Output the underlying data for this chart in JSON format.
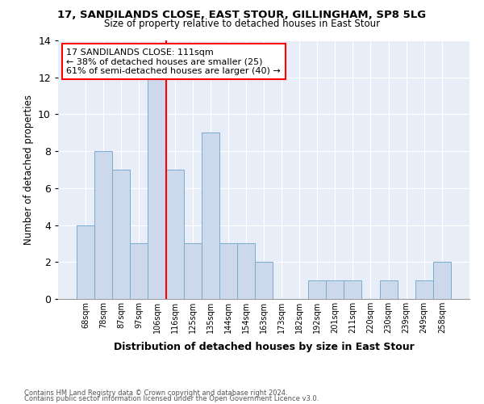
{
  "title1": "17, SANDILANDS CLOSE, EAST STOUR, GILLINGHAM, SP8 5LG",
  "title2": "Size of property relative to detached houses in East Stour",
  "xlabel": "Distribution of detached houses by size in East Stour",
  "ylabel": "Number of detached properties",
  "categories": [
    "68sqm",
    "78sqm",
    "87sqm",
    "97sqm",
    "106sqm",
    "116sqm",
    "125sqm",
    "135sqm",
    "144sqm",
    "154sqm",
    "163sqm",
    "173sqm",
    "182sqm",
    "192sqm",
    "201sqm",
    "211sqm",
    "220sqm",
    "230sqm",
    "239sqm",
    "249sqm",
    "258sqm"
  ],
  "values": [
    4,
    8,
    7,
    3,
    12,
    7,
    3,
    9,
    3,
    3,
    2,
    0,
    0,
    1,
    1,
    1,
    0,
    1,
    0,
    1,
    2
  ],
  "bar_color": "#ccd9ec",
  "bar_edge_color": "#7aaccc",
  "reference_line_x": 4.5,
  "annotation_label": "17 SANDILANDS CLOSE: 111sqm",
  "annotation_line1": "← 38% of detached houses are smaller (25)",
  "annotation_line2": "61% of semi-detached houses are larger (40) →",
  "annotation_box_color": "white",
  "annotation_box_edge": "red",
  "ref_line_color": "red",
  "ylim": [
    0,
    14
  ],
  "yticks": [
    0,
    2,
    4,
    6,
    8,
    10,
    12,
    14
  ],
  "footer1": "Contains HM Land Registry data © Crown copyright and database right 2024.",
  "footer2": "Contains public sector information licensed under the Open Government Licence v3.0.",
  "fig_bg": "#ffffff",
  "plot_bg": "#e8eef8"
}
